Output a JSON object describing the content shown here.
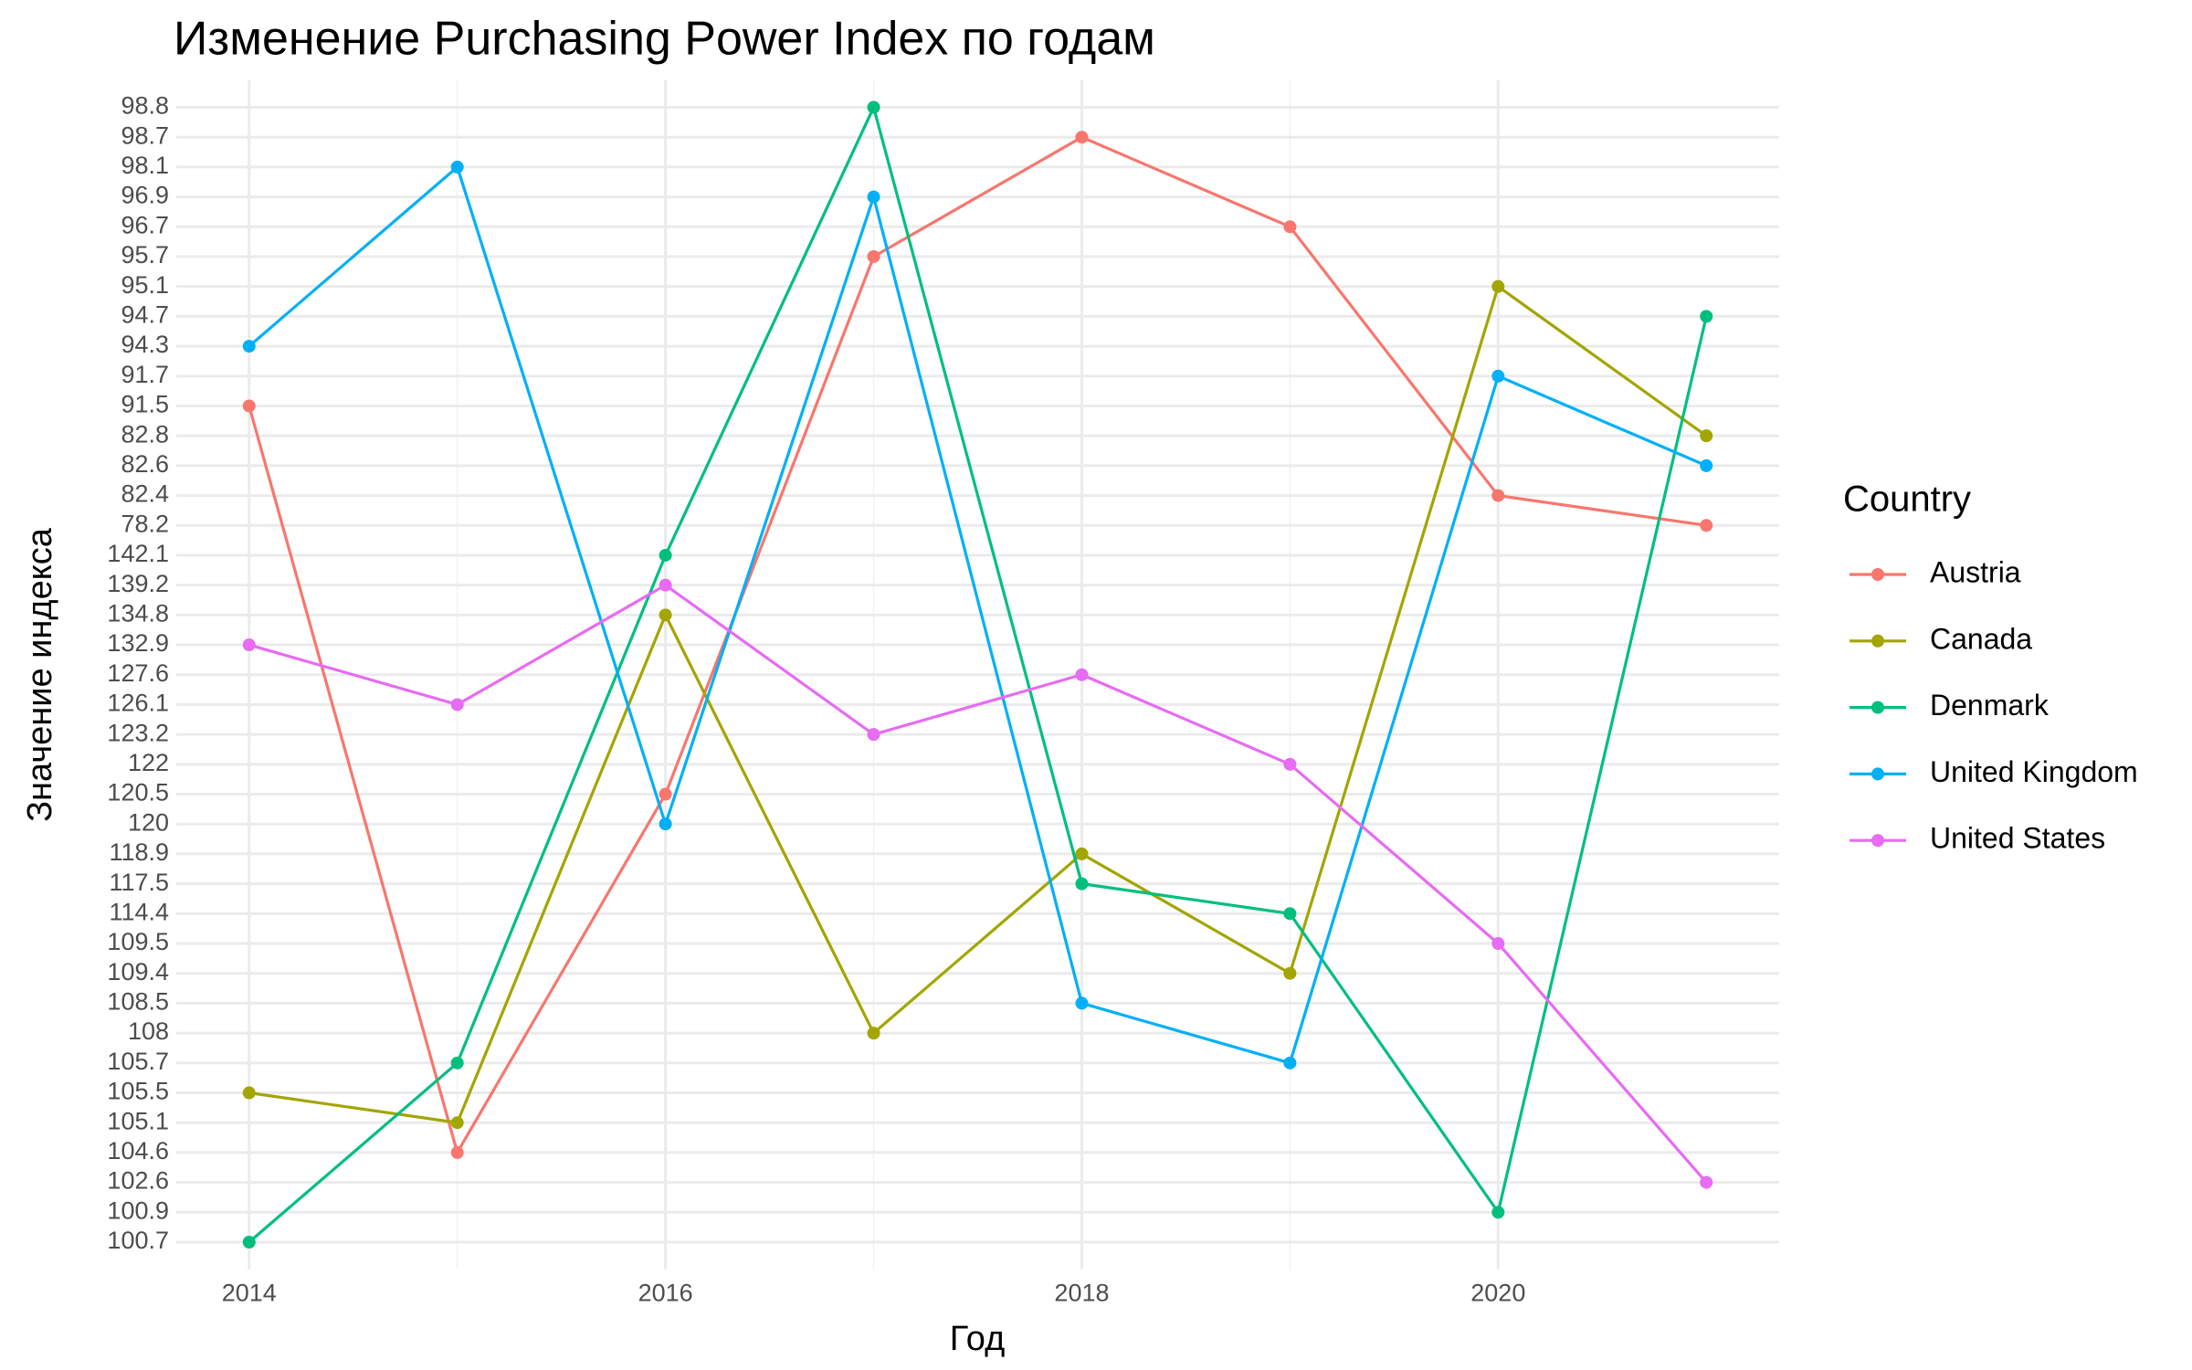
{
  "chart_data": {
    "type": "line",
    "title": "Изменение Purchasing Power Index по годам",
    "x_label": "Год",
    "y_label": "Значение индекса",
    "legend_title": "Country",
    "x": [
      2014,
      2015,
      2016,
      2017,
      2018,
      2019,
      2020,
      2021
    ],
    "xlim": [
      2013.65,
      2021.35
    ],
    "xticks": [
      2014,
      2016,
      2018,
      2020
    ],
    "yticks": [
      100.7,
      100.9,
      102.6,
      104.6,
      105.1,
      105.5,
      105.7,
      108,
      108.5,
      109.4,
      109.5,
      114.4,
      117.5,
      118.9,
      120,
      120.5,
      122,
      123.2,
      126.1,
      127.6,
      132.9,
      134.8,
      139.2,
      142.1,
      78.2,
      82.4,
      82.6,
      82.8,
      91.5,
      91.7,
      94.3,
      94.7,
      95.1,
      95.7,
      96.7,
      96.9,
      98.1,
      98.7,
      98.8
    ],
    "grid": true,
    "series": [
      {
        "name": "Austria",
        "color": "#F8766D",
        "values": [
          91.5,
          104.6,
          120.5,
          95.7,
          98.7,
          96.7,
          82.4,
          78.2
        ]
      },
      {
        "name": "Canada",
        "color": "#A3A500",
        "values": [
          105.5,
          105.1,
          134.8,
          108,
          118.9,
          109.4,
          95.1,
          82.8
        ]
      },
      {
        "name": "Denmark",
        "color": "#00BF7D",
        "values": [
          100.7,
          105.7,
          142.1,
          98.8,
          117.5,
          114.4,
          100.9,
          94.7
        ]
      },
      {
        "name": "United Kingdom",
        "color": "#00B0F6",
        "values": [
          94.3,
          98.1,
          120,
          96.9,
          108.5,
          105.7,
          91.7,
          82.6
        ]
      },
      {
        "name": "United States",
        "color": "#E76BF3",
        "values": [
          132.9,
          126.1,
          139.2,
          123.2,
          127.6,
          122,
          109.5,
          102.6
        ]
      }
    ]
  }
}
